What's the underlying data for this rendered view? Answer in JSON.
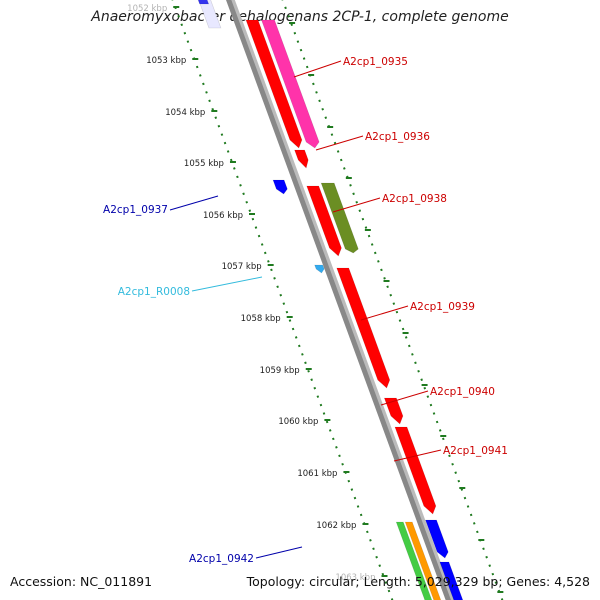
{
  "title": "Anaeromyxobacter dehalogenans 2CP-1, complete genome",
  "footer": {
    "accession": "Accession: NC_011891",
    "summary": "Topology: circular; Length: 5,029,329 bp; Genes: 4,528"
  },
  "ticks": [
    {
      "label": "1052 kbp",
      "faded": true
    },
    {
      "label": "1053 kbp"
    },
    {
      "label": "1054 kbp"
    },
    {
      "label": "1055 kbp"
    },
    {
      "label": "1056 kbp"
    },
    {
      "label": "1057 kbp"
    },
    {
      "label": "1058 kbp"
    },
    {
      "label": "1059 kbp"
    },
    {
      "label": "1060 kbp"
    },
    {
      "label": "1061 kbp"
    },
    {
      "label": "1062 kbp"
    },
    {
      "label": "1063 kbp",
      "faded": true
    }
  ],
  "colors": {
    "backbone": "#888888",
    "scale": "#1f7a1f",
    "cds_forward": "#ff0000",
    "cds_reverse": "#0000ff",
    "label_forward": "#cc0000",
    "label_reverse": "#0000aa",
    "label_rna": "#33bbdd",
    "rna_feature": "#33aaee",
    "magenta_track": "#ff33aa",
    "olive_track": "#6b8e23",
    "green_track": "#44cc44",
    "orange_track": "#ff9900"
  },
  "genes": [
    {
      "name": "A2cp1_0935",
      "strand": "+"
    },
    {
      "name": "A2cp1_0936",
      "strand": "+"
    },
    {
      "name": "A2cp1_0937",
      "strand": "-"
    },
    {
      "name": "A2cp1_0938",
      "strand": "+"
    },
    {
      "name": "A2cp1_R0008",
      "strand": "-",
      "type": "RNA"
    },
    {
      "name": "A2cp1_0939",
      "strand": "+"
    },
    {
      "name": "A2cp1_0940",
      "strand": "+"
    },
    {
      "name": "A2cp1_0941",
      "strand": "+"
    },
    {
      "name": "A2cp1_0942",
      "strand": "-"
    }
  ]
}
